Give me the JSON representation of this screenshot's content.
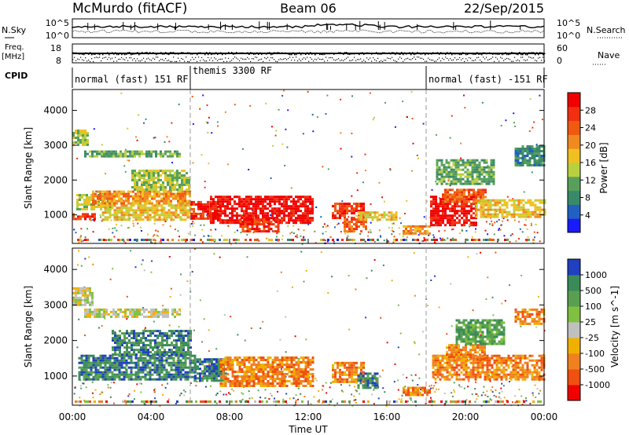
{
  "header": {
    "station": "McMurdo (fitACF)",
    "beam": "Beam 06",
    "date": "22/Sep/2015"
  },
  "top_panel": {
    "nsky_label": "N.Sky",
    "nsearch_label": "N.Search",
    "freq_label_1": "Freq.",
    "freq_label_2": "[MHz]",
    "nave_label": "Nave",
    "cpid_label": "CPID",
    "nsky_ticks": [
      "10^5",
      "10^0"
    ],
    "nsearch_ticks": [
      "10^5",
      "10^0"
    ],
    "freq_ticks": [
      "18",
      "8"
    ],
    "nave_ticks": [
      "60",
      "0"
    ],
    "cpid_segments": [
      {
        "label": "normal (fast) 151 RF",
        "start_hour": 0,
        "end_hour": 6
      },
      {
        "label": "themis 3300 RF",
        "start_hour": 6,
        "end_hour": 18
      },
      {
        "label": "normal (fast) -151 RF",
        "start_hour": 18,
        "end_hour": 24
      }
    ]
  },
  "chart_data": [
    {
      "type": "heatmap",
      "name": "power",
      "ylabel": "Slant Range [km]",
      "xlabel": "Time UT",
      "x_ticks": [
        "00:00",
        "04:00",
        "08:00",
        "12:00",
        "16:00",
        "20:00",
        "00:00"
      ],
      "xlim_hours": [
        0,
        24
      ],
      "ylim": [
        180,
        4600
      ],
      "y_ticks": [
        1000,
        2000,
        3000,
        4000
      ],
      "colorbar": {
        "label": "Power [dB]",
        "ticks": [
          "4",
          "8",
          "12",
          "16",
          "20",
          "24",
          "28"
        ],
        "colors": [
          "#1a1aff",
          "#2060c0",
          "#3a8a6a",
          "#58a05a",
          "#b8d040",
          "#f0c020",
          "#f08a20",
          "#f05a10",
          "#f03010",
          "#f00000"
        ]
      },
      "regions": [
        {
          "t0": 0.0,
          "t1": 1.2,
          "r0": 850,
          "r1": 1050,
          "level": 8
        },
        {
          "t0": 0.2,
          "t1": 2.0,
          "r0": 1150,
          "r1": 1600,
          "level": 4
        },
        {
          "t0": 0.0,
          "t1": 0.8,
          "r0": 3000,
          "r1": 3450,
          "level": 4
        },
        {
          "t0": 0.6,
          "t1": 5.5,
          "r0": 2700,
          "r1": 2850,
          "level": 3
        },
        {
          "t0": 1.0,
          "t1": 6.0,
          "r0": 1300,
          "r1": 1700,
          "level": 6
        },
        {
          "t0": 1.5,
          "t1": 6.0,
          "r0": 850,
          "r1": 1300,
          "level": 5
        },
        {
          "t0": 3.0,
          "t1": 6.0,
          "r0": 1700,
          "r1": 2300,
          "level": 4
        },
        {
          "t0": 6.0,
          "t1": 7.5,
          "r0": 900,
          "r1": 1400,
          "level": 8
        },
        {
          "t0": 7.0,
          "t1": 12.2,
          "r0": 750,
          "r1": 1550,
          "level": 9
        },
        {
          "t0": 8.5,
          "t1": 10.5,
          "r0": 550,
          "r1": 900,
          "level": 8
        },
        {
          "t0": 13.2,
          "t1": 14.8,
          "r0": 900,
          "r1": 1350,
          "level": 8
        },
        {
          "t0": 13.8,
          "t1": 15.0,
          "r0": 500,
          "r1": 900,
          "level": 7
        },
        {
          "t0": 14.5,
          "t1": 16.5,
          "r0": 850,
          "r1": 1100,
          "level": 5
        },
        {
          "t0": 16.8,
          "t1": 18.2,
          "r0": 450,
          "r1": 700,
          "level": 6
        },
        {
          "t0": 18.2,
          "t1": 20.5,
          "r0": 700,
          "r1": 1550,
          "level": 9
        },
        {
          "t0": 18.8,
          "t1": 21.0,
          "r0": 1400,
          "r1": 1750,
          "level": 7
        },
        {
          "t0": 20.5,
          "t1": 24.0,
          "r0": 950,
          "r1": 1450,
          "level": 5
        },
        {
          "t0": 18.5,
          "t1": 21.5,
          "r0": 1900,
          "r1": 2600,
          "level": 3
        },
        {
          "t0": 22.5,
          "t1": 24.0,
          "r0": 2400,
          "r1": 3000,
          "level": 2
        }
      ]
    },
    {
      "type": "heatmap",
      "name": "velocity",
      "ylabel": "Slant Range [km]",
      "xlabel": "Time UT",
      "x_ticks": [
        "00:00",
        "04:00",
        "08:00",
        "12:00",
        "16:00",
        "20:00",
        "00:00"
      ],
      "xlim_hours": [
        0,
        24
      ],
      "ylim": [
        180,
        4600
      ],
      "y_ticks": [
        1000,
        2000,
        3000,
        4000
      ],
      "colorbar": {
        "label": "Velocity [m s^-1]",
        "ticks": [
          "1000",
          "500",
          "100",
          "25",
          "-25",
          "-100",
          "-500",
          "-1000"
        ],
        "colors": [
          "#2040c0",
          "#3a8a5a",
          "#58a050",
          "#80c040",
          "#c0c0c0",
          "#f0b000",
          "#f08020",
          "#f05010",
          "#f00000"
        ]
      },
      "regions": [
        {
          "t0": 0.0,
          "t1": 1.0,
          "r0": 3000,
          "r1": 3500,
          "level": 4
        },
        {
          "t0": 0.6,
          "t1": 5.5,
          "r0": 2650,
          "r1": 2900,
          "level": 4
        },
        {
          "t0": 0.3,
          "t1": 6.2,
          "r0": 900,
          "r1": 1600,
          "level": 1
        },
        {
          "t0": 2.0,
          "t1": 6.0,
          "r0": 1600,
          "r1": 2300,
          "level": 1
        },
        {
          "t0": 6.2,
          "t1": 7.8,
          "r0": 850,
          "r1": 1500,
          "level": 1
        },
        {
          "t0": 6.8,
          "t1": 7.4,
          "r0": 1100,
          "r1": 1500,
          "level": 0
        },
        {
          "t0": 7.5,
          "t1": 12.2,
          "r0": 700,
          "r1": 1550,
          "level": 6
        },
        {
          "t0": 13.2,
          "t1": 14.8,
          "r0": 850,
          "r1": 1400,
          "level": 6
        },
        {
          "t0": 14.5,
          "t1": 15.5,
          "r0": 700,
          "r1": 1100,
          "level": 1
        },
        {
          "t0": 16.8,
          "t1": 18.2,
          "r0": 450,
          "r1": 700,
          "level": 6
        },
        {
          "t0": 18.3,
          "t1": 24.0,
          "r0": 900,
          "r1": 1600,
          "level": 6
        },
        {
          "t0": 19.0,
          "t1": 21.0,
          "r0": 1500,
          "r1": 1900,
          "level": 6
        },
        {
          "t0": 19.5,
          "t1": 22.0,
          "r0": 1900,
          "r1": 2600,
          "level": 2
        },
        {
          "t0": 22.5,
          "t1": 24.0,
          "r0": 2500,
          "r1": 2900,
          "level": 6
        }
      ]
    }
  ]
}
